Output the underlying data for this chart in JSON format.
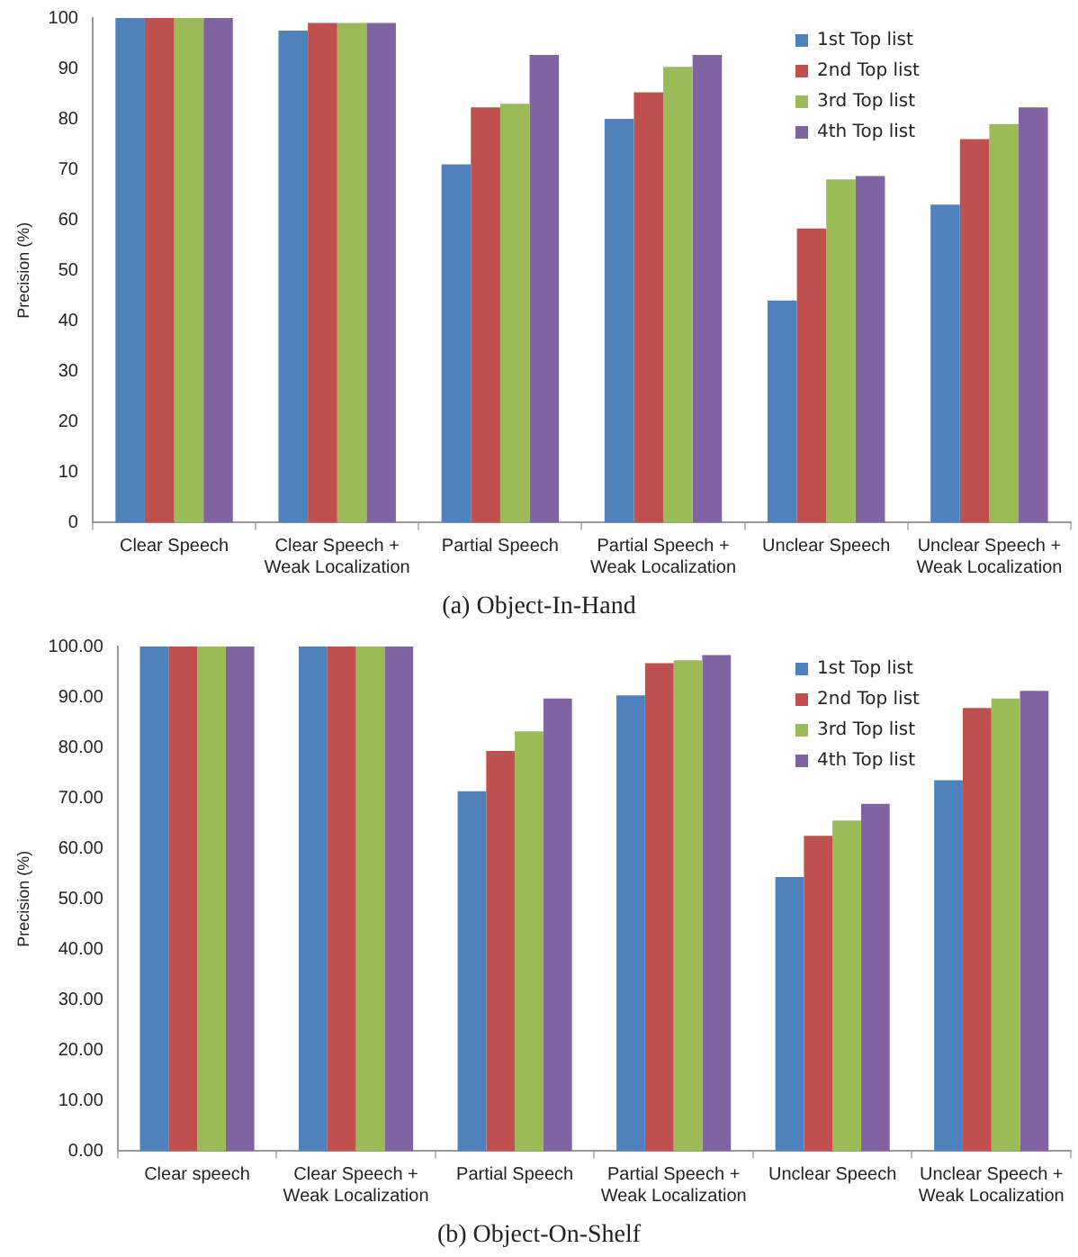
{
  "chart_data": [
    {
      "type": "bar",
      "title": "(a) Object-In-Hand",
      "ylabel": "Precision (%)",
      "categories": [
        "Clear Speech",
        "Clear Speech + Weak Localization",
        "Partial Speech",
        "Partial Speech + Weak Localization",
        "Unclear Speech",
        "Unclear Speech + Weak Localization"
      ],
      "series": [
        {
          "name": "1st Top list",
          "color": "#4f81bd",
          "values": [
            100,
            97.5,
            71,
            80,
            44,
            63
          ]
        },
        {
          "name": "2nd Top list",
          "color": "#c0504d",
          "values": [
            100,
            99,
            82.3,
            85.3,
            58.3,
            76
          ]
        },
        {
          "name": "3rd Top list",
          "color": "#9bbb59",
          "values": [
            100,
            99,
            83,
            90.3,
            68,
            79
          ]
        },
        {
          "name": "4th Top list",
          "color": "#8064a2",
          "values": [
            100,
            99,
            92.7,
            92.7,
            68.7,
            82.3
          ]
        }
      ],
      "ylim": [
        0,
        100
      ],
      "yticks": [
        0,
        10,
        20,
        30,
        40,
        50,
        60,
        70,
        80,
        90,
        100
      ],
      "grid": false,
      "legend": "top right"
    },
    {
      "type": "bar",
      "title": "(b) Object-On-Shelf",
      "ylabel": "Precision (%)",
      "categories": [
        "Clear speech",
        "Clear Speech + Weak Localization",
        "Partial Speech",
        "Partial Speech + Weak Localization",
        "Unclear Speech",
        "Unclear Speech + Weak Localization"
      ],
      "series": [
        {
          "name": "1st Top list",
          "color": "#4f81bd",
          "values": [
            100,
            100,
            71.3,
            90.3,
            54.3,
            73.5
          ]
        },
        {
          "name": "2nd Top list",
          "color": "#c0504d",
          "values": [
            100,
            100,
            79.3,
            96.7,
            62.5,
            87.8
          ]
        },
        {
          "name": "3rd Top list",
          "color": "#9bbb59",
          "values": [
            100,
            100,
            83.2,
            97.3,
            65.5,
            89.7
          ]
        },
        {
          "name": "4th Top list",
          "color": "#8064a2",
          "values": [
            100,
            100,
            89.7,
            98.3,
            68.8,
            91.2
          ]
        }
      ],
      "ylim": [
        0,
        100
      ],
      "yticks": [
        {
          "value": 0,
          "label": "0.00"
        },
        {
          "value": 10,
          "label": "10.00"
        },
        {
          "value": 20,
          "label": "20.00"
        },
        {
          "value": 30,
          "label": "30.00"
        },
        {
          "value": 40,
          "label": "40.00"
        },
        {
          "value": 50,
          "label": "50.00"
        },
        {
          "value": 60,
          "label": "60.00"
        },
        {
          "value": 70,
          "label": "70.00"
        },
        {
          "value": 80,
          "label": "80.00"
        },
        {
          "value": 90,
          "label": "90.00"
        },
        {
          "value": 100,
          "label": "100.00"
        }
      ],
      "grid": false,
      "legend": "top right"
    }
  ]
}
